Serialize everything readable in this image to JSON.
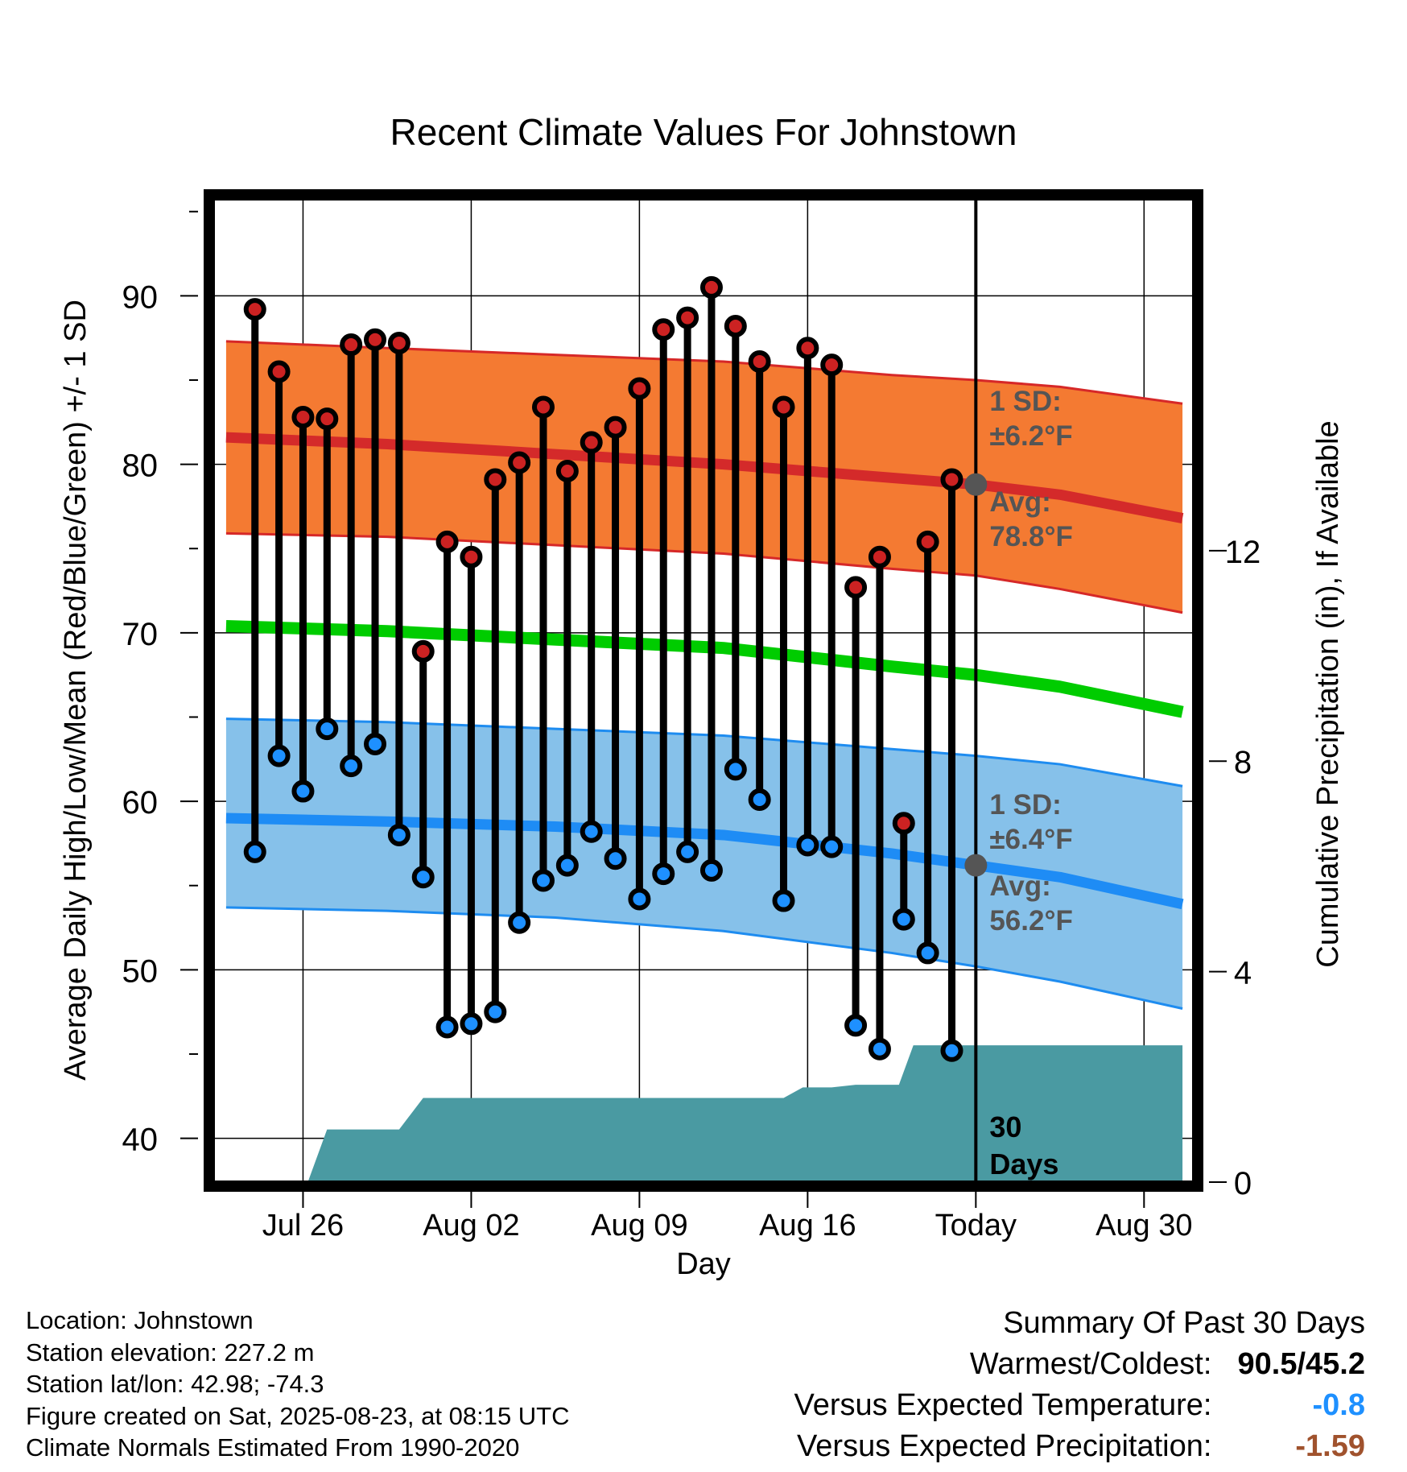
{
  "chart_data": {
    "type": "line",
    "title": "Recent Climate Values For Johnstown",
    "xlabel": "Day",
    "ylabel": "Average Daily High/Low/Mean (Red/Blue/Green) +/- 1 SD",
    "y2label": "Cumulative Precipitation (in), If Available",
    "ylim": [
      37.4,
      95.8
    ],
    "y2lim": [
      0,
      18.7
    ],
    "xlim": [
      -3.7,
      37.1
    ],
    "y_ticks": [
      40,
      50,
      60,
      70,
      80,
      90
    ],
    "y2_ticks": [
      0,
      4,
      8,
      12
    ],
    "x_ticks": [
      {
        "day": 0,
        "label": "Jul 26"
      },
      {
        "day": 7,
        "label": "Aug 02"
      },
      {
        "day": 14,
        "label": "Aug 09"
      },
      {
        "day": 21,
        "label": "Aug 16"
      },
      {
        "day": 28,
        "label": "Today"
      },
      {
        "day": 35,
        "label": "Aug 30"
      }
    ],
    "today_day": 28,
    "series": [
      {
        "name": "High",
        "color": "#cc2222",
        "x": [
          -2,
          -1,
          0,
          1,
          2,
          3,
          4,
          5,
          6,
          7,
          8,
          9,
          10,
          11,
          12,
          13,
          14,
          15,
          16,
          17,
          18,
          19,
          20,
          21,
          22,
          23,
          24,
          25,
          26,
          27
        ],
        "values": [
          89.2,
          85.5,
          82.8,
          82.7,
          87.1,
          87.4,
          87.2,
          68.9,
          75.4,
          74.5,
          79.1,
          80.1,
          83.4,
          79.6,
          81.3,
          82.2,
          84.5,
          88.0,
          88.7,
          90.5,
          88.2,
          86.1,
          83.4,
          86.9,
          85.9,
          72.7,
          74.5,
          58.7,
          75.4,
          79.1
        ]
      },
      {
        "name": "Low",
        "color": "#1e90ff",
        "x": [
          -2,
          -1,
          0,
          1,
          2,
          3,
          4,
          5,
          6,
          7,
          8,
          9,
          10,
          11,
          12,
          13,
          14,
          15,
          16,
          17,
          18,
          19,
          20,
          21,
          22,
          23,
          24,
          25,
          26,
          27
        ],
        "values": [
          57.0,
          62.7,
          60.6,
          64.3,
          62.1,
          63.4,
          58.0,
          55.5,
          46.6,
          46.8,
          47.5,
          52.8,
          55.3,
          56.2,
          58.2,
          56.6,
          54.2,
          55.7,
          57.0,
          55.9,
          61.9,
          60.1,
          54.1,
          57.4,
          57.3,
          46.7,
          45.3,
          53.0,
          51.0,
          45.2
        ]
      }
    ],
    "normals": {
      "days": [
        -3.2,
        3.5,
        10.5,
        17.5,
        24.5,
        28,
        31.5,
        36.6
      ],
      "high_avg": [
        81.6,
        81.2,
        80.6,
        80.0,
        79.2,
        78.8,
        78.2,
        76.8
      ],
      "high_upper": [
        87.3,
        86.9,
        86.5,
        86.1,
        85.3,
        85.0,
        84.6,
        83.6
      ],
      "high_lower": [
        75.9,
        75.7,
        75.2,
        74.7,
        73.8,
        73.4,
        72.6,
        71.2
      ],
      "mean": [
        70.4,
        70.1,
        69.6,
        69.1,
        68.0,
        67.5,
        66.8,
        65.3
      ],
      "low_avg": [
        59.0,
        58.8,
        58.5,
        58.0,
        56.9,
        56.2,
        55.5,
        53.9
      ],
      "low_upper": [
        64.9,
        64.7,
        64.3,
        63.9,
        63.1,
        62.7,
        62.2,
        60.9
      ],
      "low_lower": [
        53.7,
        53.5,
        53.1,
        52.3,
        51.0,
        50.2,
        49.3,
        47.7
      ]
    },
    "precip": {
      "color": "#4a9aa2",
      "days": [
        0.2,
        1.0,
        4.0,
        5.0,
        12.0,
        13.0,
        17.0,
        18.0,
        19.0,
        20.0,
        20.8,
        22.0,
        23.0,
        23.9,
        24.8,
        25.4,
        26.0,
        36.6
      ],
      "values": [
        0.0,
        1.0,
        1.0,
        1.6,
        1.6,
        1.6,
        1.6,
        1.6,
        1.6,
        1.6,
        1.8,
        1.8,
        1.85,
        1.85,
        1.85,
        2.6,
        2.6,
        2.6
      ]
    },
    "annotations": {
      "high_sd": "1 SD:",
      "high_sd_val": "±6.2°F",
      "high_avg_label": "Avg:",
      "high_avg_val": "78.8°F",
      "low_sd": "1 SD:",
      "low_sd_val": "±6.4°F",
      "low_avg_label": "Avg:",
      "low_avg_val": "56.2°F",
      "days_num": "30",
      "days_word": "Days"
    },
    "today_high_avg": 78.8,
    "today_low_avg": 56.2
  },
  "info": {
    "location": "Location: Johnstown",
    "elevation": "Station elevation: 227.2 m",
    "latlon": "Station lat/lon: 42.98; -74.3",
    "created": "Figure created on Sat, 2025-08-23, at 08:15 UTC",
    "normals": "Climate Normals Estimated From 1990-2020"
  },
  "summary": {
    "title": "Summary Of Past 30 Days",
    "warmest_label": "Warmest/Coldest:",
    "warmest_value": "90.5/45.2",
    "temp_label": "Versus Expected Temperature:",
    "temp_value": "-0.8",
    "temp_color": "#1e90ff",
    "precip_label": "Versus Expected Precipitation:",
    "precip_value": "-1.59",
    "precip_color": "#a0522d"
  }
}
